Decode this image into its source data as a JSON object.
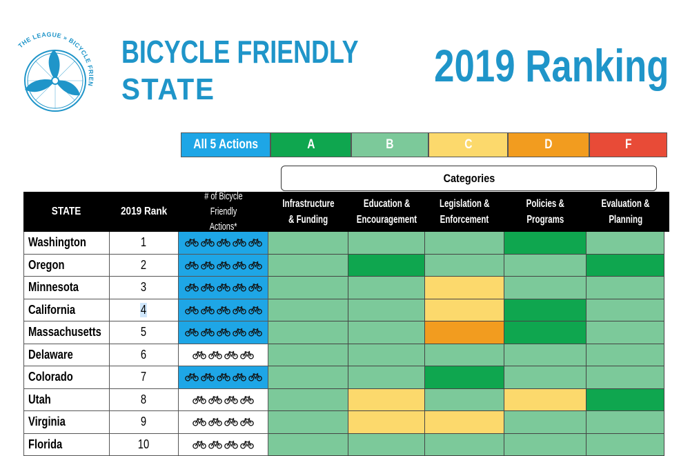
{
  "brand": {
    "logo_arc_text": "THE LEAGUE » BICYCLE FRIENDLY AMERICA",
    "line1": "BICYCLE FRIENDLY",
    "line2": "STATE"
  },
  "title": "2019 Ranking",
  "colors": {
    "blue": "#1ea6e6",
    "A": "#0fa64f",
    "B": "#7cc99a",
    "C": "#fcd96c",
    "D": "#f29c1f",
    "F": "#e84b37",
    "brand": "#1f95c9"
  },
  "legend": [
    {
      "label": "All 5 Actions",
      "color": "blue"
    },
    {
      "label": "A",
      "color": "A"
    },
    {
      "label": "B",
      "color": "B"
    },
    {
      "label": "C",
      "color": "C"
    },
    {
      "label": "D",
      "color": "D"
    },
    {
      "label": "F",
      "color": "F"
    }
  ],
  "categories_label": "Categories",
  "headers": {
    "state": "STATE",
    "rank": "2019 Rank",
    "actions_line1": "# of Bicycle Friendly",
    "actions_line2": "Actions*",
    "cat": [
      [
        "Infrastructure",
        "& Funding"
      ],
      [
        "Education &",
        "Encouragement"
      ],
      [
        "Legislation &",
        "Enforcement"
      ],
      [
        "Policies &",
        "Programs"
      ],
      [
        "Evaluation &",
        "Planning"
      ]
    ]
  },
  "rows": [
    {
      "state": "Washington",
      "rank": "1",
      "actions": 5,
      "grades": [
        "B",
        "B",
        "B",
        "A",
        "B"
      ]
    },
    {
      "state": "Oregon",
      "rank": "2",
      "actions": 5,
      "grades": [
        "B",
        "A",
        "B",
        "B",
        "A"
      ]
    },
    {
      "state": "Minnesota",
      "rank": "3",
      "actions": 5,
      "grades": [
        "B",
        "B",
        "C",
        "B",
        "B"
      ]
    },
    {
      "state": "California",
      "rank": "4",
      "actions": 5,
      "grades": [
        "B",
        "B",
        "C",
        "A",
        "B"
      ]
    },
    {
      "state": "Massachusetts",
      "rank": "5",
      "actions": 5,
      "grades": [
        "B",
        "B",
        "D",
        "A",
        "B"
      ]
    },
    {
      "state": "Delaware",
      "rank": "6",
      "actions": 4,
      "grades": [
        "B",
        "B",
        "B",
        "B",
        "B"
      ]
    },
    {
      "state": "Colorado",
      "rank": "7",
      "actions": 5,
      "grades": [
        "B",
        "B",
        "A",
        "B",
        "B"
      ]
    },
    {
      "state": "Utah",
      "rank": "8",
      "actions": 4,
      "grades": [
        "B",
        "C",
        "B",
        "C",
        "A"
      ]
    },
    {
      "state": "Virginia",
      "rank": "9",
      "actions": 4,
      "grades": [
        "B",
        "C",
        "C",
        "B",
        "B"
      ]
    },
    {
      "state": "Florida",
      "rank": "10",
      "actions": 4,
      "grades": [
        "B",
        "B",
        "B",
        "B",
        "B"
      ]
    }
  ],
  "icons": {
    "logo": "bicycle-wheel-logo-icon",
    "action": "bicycle-icon"
  }
}
